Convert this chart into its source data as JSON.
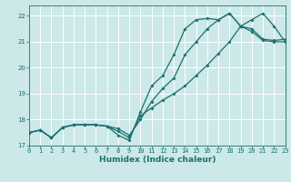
{
  "title": "",
  "xlabel": "Humidex (Indice chaleur)",
  "bg_color": "#cce8e8",
  "line_color": "#1a7070",
  "grid_color": "#ffffff",
  "xlim": [
    0,
    23
  ],
  "ylim": [
    17,
    22.4
  ],
  "xticks": [
    0,
    1,
    2,
    3,
    4,
    5,
    6,
    7,
    8,
    9,
    10,
    11,
    12,
    13,
    14,
    15,
    16,
    17,
    18,
    19,
    20,
    21,
    22,
    23
  ],
  "yticks": [
    17,
    18,
    19,
    20,
    21,
    22
  ],
  "line1_x": [
    0,
    1,
    2,
    3,
    4,
    5,
    6,
    7,
    8,
    9,
    10,
    11,
    12,
    13,
    14,
    15,
    16,
    17,
    18,
    19,
    20,
    21,
    22,
    23
  ],
  "line1_y": [
    17.5,
    17.6,
    17.3,
    17.7,
    17.8,
    17.8,
    17.8,
    17.75,
    17.65,
    17.4,
    18.0,
    18.7,
    19.2,
    19.6,
    20.5,
    21.0,
    21.5,
    21.85,
    22.1,
    21.6,
    21.5,
    21.1,
    21.05,
    21.1
  ],
  "line2_x": [
    0,
    1,
    2,
    3,
    4,
    5,
    6,
    7,
    8,
    9,
    10,
    11,
    12,
    13,
    14,
    15,
    16,
    17,
    18,
    19,
    20,
    21,
    22,
    23
  ],
  "line2_y": [
    17.5,
    17.6,
    17.3,
    17.7,
    17.8,
    17.8,
    17.8,
    17.75,
    17.4,
    17.2,
    18.3,
    19.3,
    19.7,
    20.5,
    21.5,
    21.85,
    21.9,
    21.85,
    22.1,
    21.6,
    21.4,
    21.05,
    21.0,
    21.0
  ],
  "line3_x": [
    0,
    1,
    2,
    3,
    4,
    5,
    6,
    7,
    8,
    9,
    10,
    11,
    12,
    13,
    14,
    15,
    16,
    17,
    18,
    19,
    20,
    21,
    22,
    23
  ],
  "line3_y": [
    17.5,
    17.6,
    17.3,
    17.7,
    17.8,
    17.8,
    17.8,
    17.75,
    17.55,
    17.3,
    18.15,
    18.45,
    18.75,
    19.0,
    19.3,
    19.7,
    20.1,
    20.55,
    21.0,
    21.6,
    21.85,
    22.1,
    21.6,
    21.0
  ]
}
